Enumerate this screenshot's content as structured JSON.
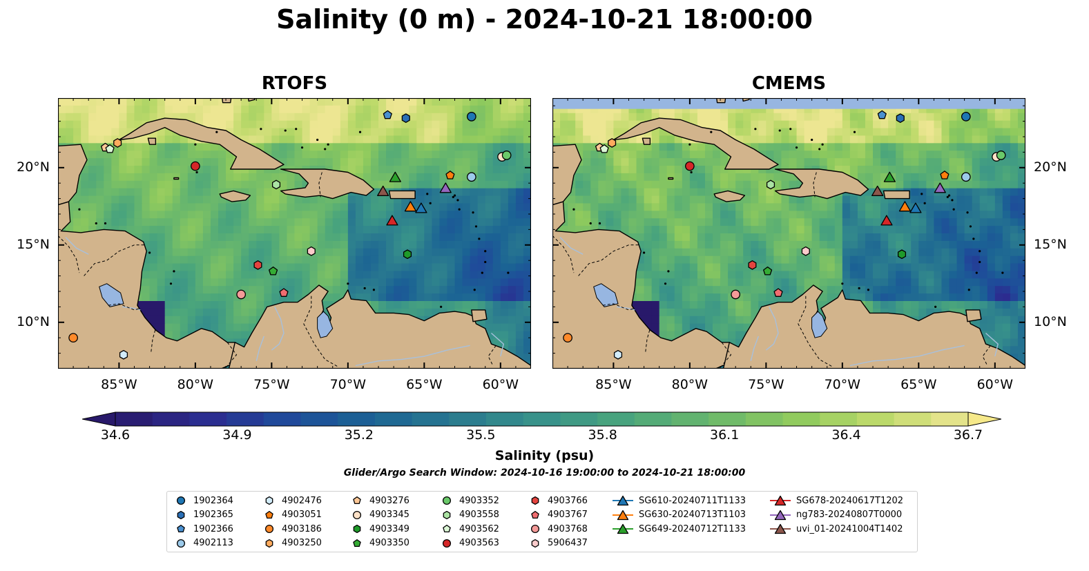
{
  "title": "Salinity (0 m) - 2024-10-21 18:00:00",
  "colors": {
    "land": "#d2b48c",
    "lakes": "#97b6e1",
    "rivers": "#a8c0dc",
    "coast": "#000000",
    "colormap": [
      "#28196a",
      "#2c2b8f",
      "#1f4a9a",
      "#1b6394",
      "#2a7a8f",
      "#38928a",
      "#4aa57c",
      "#6ab86c",
      "#8fca5d",
      "#bfda6b",
      "#ede692"
    ],
    "cbar_under": "#28196a",
    "cbar_over": "#f6e98a"
  },
  "panels": [
    {
      "title": "RTOFS",
      "missing_north_band": false
    },
    {
      "title": "CMEMS",
      "missing_north_band": true
    }
  ],
  "axes": {
    "x_ticks": [
      "85°W",
      "80°W",
      "75°W",
      "70°W",
      "65°W",
      "60°W"
    ],
    "y_ticks": [
      "20°N",
      "15°N",
      "10°N"
    ],
    "xlim": [
      -89,
      -58
    ],
    "ylim": [
      7,
      24.5
    ]
  },
  "colorbar": {
    "label": "Salinity (psu)",
    "ticks": [
      "34.6",
      "34.9",
      "35.2",
      "35.5",
      "35.8",
      "36.1",
      "36.4",
      "36.7"
    ],
    "min": 34.6,
    "max": 36.7,
    "extend": "both"
  },
  "search_window": "Glider/Argo Search Window: 2024-10-16 19:00:00 to 2024-10-21 18:00:00",
  "legend": {
    "columns": [
      [
        {
          "label": "1902364",
          "marker": "circle",
          "color": "#1f77b4"
        },
        {
          "label": "1902365",
          "marker": "hexagon",
          "color": "#2a6fb6"
        },
        {
          "label": "1902366",
          "marker": "pentagon",
          "color": "#4a90d0"
        },
        {
          "label": "4902113",
          "marker": "circle",
          "color": "#9ccaea"
        }
      ],
      [
        {
          "label": "4902476",
          "marker": "hexagon",
          "color": "#d2ecfa"
        },
        {
          "label": "4903051",
          "marker": "pentagon",
          "color": "#ff7f0e"
        },
        {
          "label": "4903186",
          "marker": "circle",
          "color": "#ff8a2a"
        },
        {
          "label": "4903250",
          "marker": "hexagon",
          "color": "#ffab5e"
        }
      ],
      [
        {
          "label": "4903276",
          "marker": "pentagon",
          "color": "#ffc897"
        },
        {
          "label": "4903345",
          "marker": "circle",
          "color": "#ffe2c8"
        },
        {
          "label": "4903349",
          "marker": "hexagon",
          "color": "#1f9a2a"
        },
        {
          "label": "4903350",
          "marker": "pentagon",
          "color": "#35ac35"
        }
      ],
      [
        {
          "label": "4903352",
          "marker": "circle",
          "color": "#6ac96a"
        },
        {
          "label": "4903558",
          "marker": "hexagon",
          "color": "#abe3a3"
        },
        {
          "label": "4903562",
          "marker": "pentagon",
          "color": "#dcf7d6"
        },
        {
          "label": "4903563",
          "marker": "circle",
          "color": "#d62728"
        }
      ],
      [
        {
          "label": "4903766",
          "marker": "hexagon",
          "color": "#e4443f"
        },
        {
          "label": "4903767",
          "marker": "pentagon",
          "color": "#f06d70"
        },
        {
          "label": "4903768",
          "marker": "circle",
          "color": "#f49a98"
        },
        {
          "label": "5906437",
          "marker": "hexagon",
          "color": "#fbcbcb"
        }
      ],
      [
        {
          "label": "SG610-20240711T1133",
          "marker": "triangle",
          "color": "#1f77b4"
        },
        {
          "label": "SG630-20240713T1103",
          "marker": "triangle",
          "color": "#ff7f0e"
        },
        {
          "label": "SG649-20240712T1133",
          "marker": "triangle",
          "color": "#2ca02c"
        }
      ],
      [
        {
          "label": "SG678-20240617T1202",
          "marker": "triangle",
          "color": "#d62728"
        },
        {
          "label": "ng783-20240807T0000",
          "marker": "triangle",
          "color": "#9467bd"
        },
        {
          "label": "uvi_01-20241004T1402",
          "marker": "triangle",
          "color": "#8c564b"
        }
      ]
    ]
  },
  "platforms": [
    {
      "id": "1902364",
      "lon": -61.9,
      "lat": 23.3
    },
    {
      "id": "1902365",
      "lon": -66.2,
      "lat": 23.2
    },
    {
      "id": "1902366",
      "lon": -67.4,
      "lat": 23.4
    },
    {
      "id": "4902113",
      "lon": -61.9,
      "lat": 19.4
    },
    {
      "id": "4902476",
      "lon": -84.7,
      "lat": 7.9
    },
    {
      "id": "4903051",
      "lon": -63.3,
      "lat": 19.5
    },
    {
      "id": "4903186",
      "lon": -88.0,
      "lat": 9.0
    },
    {
      "id": "4903250",
      "lon": -85.1,
      "lat": 21.6
    },
    {
      "id": "4903276",
      "lon": -85.9,
      "lat": 21.3
    },
    {
      "id": "4903345",
      "lon": -59.9,
      "lat": 20.7
    },
    {
      "id": "4903349",
      "lon": -66.1,
      "lat": 14.4
    },
    {
      "id": "4903350",
      "lon": -74.9,
      "lat": 13.3
    },
    {
      "id": "4903352",
      "lon": -59.6,
      "lat": 20.8
    },
    {
      "id": "4903558",
      "lon": -74.7,
      "lat": 18.9
    },
    {
      "id": "4903562",
      "lon": -85.6,
      "lat": 21.2
    },
    {
      "id": "4903563",
      "lon": -80.0,
      "lat": 20.1
    },
    {
      "id": "4903766",
      "lon": -75.9,
      "lat": 13.7
    },
    {
      "id": "4903767",
      "lon": -74.2,
      "lat": 11.9
    },
    {
      "id": "4903768",
      "lon": -77.0,
      "lat": 11.8
    },
    {
      "id": "5906437",
      "lon": -72.4,
      "lat": 14.6
    },
    {
      "id": "SG610-20240711T1133",
      "lon": -65.2,
      "lat": 17.4
    },
    {
      "id": "SG630-20240713T1103",
      "lon": -65.9,
      "lat": 17.5
    },
    {
      "id": "SG649-20240712T1133",
      "lon": -66.9,
      "lat": 19.4
    },
    {
      "id": "SG678-20240617T1202",
      "lon": -67.1,
      "lat": 16.6
    },
    {
      "id": "ng783-20240807T0000",
      "lon": -63.6,
      "lat": 18.7
    },
    {
      "id": "uvi_01-20241004T1402",
      "lon": -67.7,
      "lat": 18.5
    }
  ]
}
